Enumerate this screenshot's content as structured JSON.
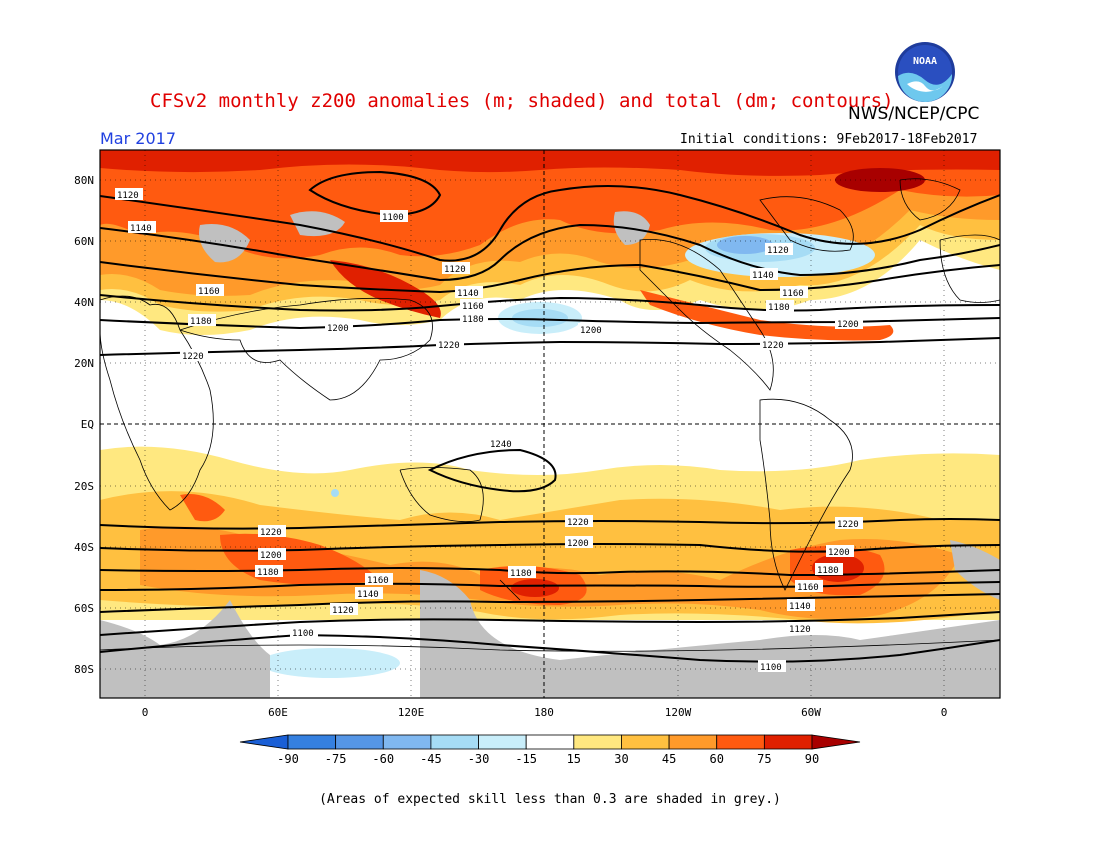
{
  "title": "CFSv2 monthly z200 anomalies (m; shaded) and total (dm; contours)",
  "agency": "NWS/NCEP/CPC",
  "logo_text": "NOAA",
  "valid_month": "Mar 2017",
  "initial_conditions": "Initial conditions: 9Feb2017-18Feb2017",
  "footnote": "(Areas of expected skill less than 0.3 are shaded in grey.)",
  "lat_ticks": [
    "80N",
    "60N",
    "40N",
    "20N",
    "EQ",
    "20S",
    "40S",
    "60S",
    "80S"
  ],
  "lon_ticks": [
    "0",
    "60E",
    "120E",
    "180",
    "120W",
    "60W",
    "0"
  ],
  "contour_labels": {
    "l1100": "1100",
    "l1120": "1120",
    "l1140": "1140",
    "l1160": "1160",
    "l1180": "1180",
    "l1200": "1200",
    "l1220": "1220",
    "l1240": "1240"
  },
  "colorbar": {
    "labels": [
      "-90",
      "-75",
      "-60",
      "-45",
      "-30",
      "-15",
      "15",
      "30",
      "45",
      "60",
      "75",
      "90"
    ],
    "colors": [
      "#1a5fd6",
      "#3580e0",
      "#5596e6",
      "#80b8f0",
      "#a6dcf5",
      "#c9eefa",
      "#ffffff",
      "#ffe880",
      "#ffc040",
      "#ff9a2a",
      "#ff5a10",
      "#e02000",
      "#a80000"
    ]
  },
  "colors": {
    "title": "#e00000",
    "month": "#2040e0",
    "skill_grey": "#c0c0c0"
  }
}
